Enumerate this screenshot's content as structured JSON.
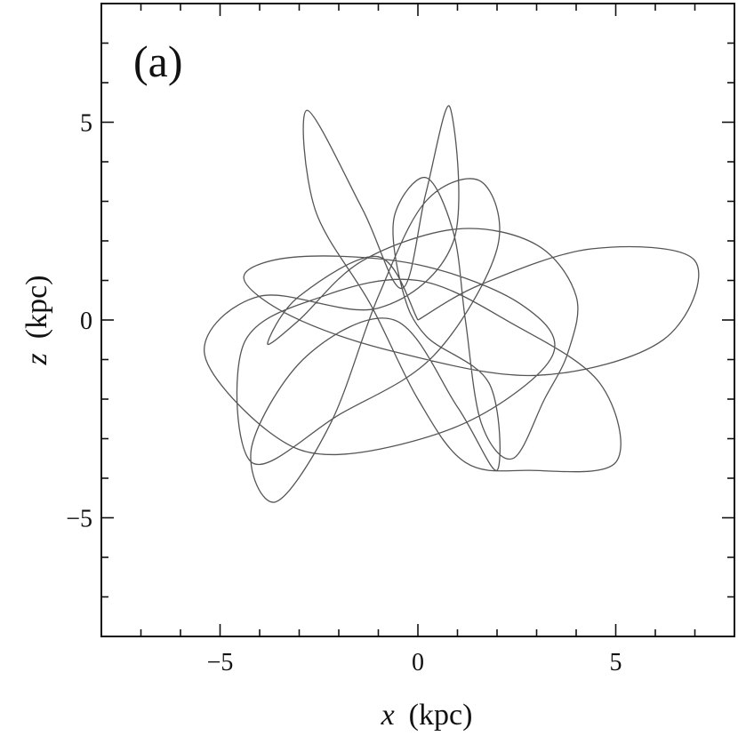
{
  "chart_data": {
    "type": "line",
    "panel_label": "(a)",
    "xlabel_var": "x",
    "xlabel_unit": "(kpc)",
    "ylabel_var": "z",
    "ylabel_unit": "(kpc)",
    "xlim": [
      -8,
      8
    ],
    "ylim": [
      -8,
      8
    ],
    "x_ticks_major": [
      -5,
      0,
      5
    ],
    "y_ticks_major": [
      -5,
      0,
      5
    ],
    "x_tick_labels": [
      "−5",
      "0",
      "5"
    ],
    "y_tick_labels": [
      "−5",
      "0",
      "5"
    ],
    "grid": false,
    "line_color": "#555555",
    "series": [
      {
        "x": [
          0.0,
          1.6,
          4.4,
          7.0,
          6.2,
          3.0,
          -0.6,
          -3.2,
          -4.4,
          -3.0,
          0.0,
          2.6,
          3.4,
          1.2,
          -2.0,
          -3.8,
          -5.4,
          -4.0,
          -1.0,
          0.9,
          0.8,
          0.2,
          -0.4,
          -1.4,
          -2.8,
          -2.6,
          -1.2,
          0.0,
          1.2,
          2.8,
          5.0,
          4.6,
          2.4,
          0.0,
          -2.4,
          -4.4,
          -4.2,
          -2.0,
          0.4,
          2.0,
          1.6,
          0.2,
          -1.0,
          -2.2,
          -3.6,
          -4.2,
          -2.8,
          -0.6,
          1.0,
          2.0,
          1.8,
          0.2,
          -0.4,
          -0.6,
          0.2,
          0.9,
          1.2,
          1.6,
          2.4,
          3.2,
          3.8,
          4.0,
          3.0,
          1.0,
          -1.4,
          -3.0,
          -3.8,
          -3.0,
          -1.0,
          0.0
        ],
        "y": [
          0.0,
          0.9,
          1.8,
          1.5,
          -0.5,
          -1.4,
          -0.8,
          0.1,
          1.1,
          1.6,
          1.4,
          0.4,
          -0.9,
          -2.6,
          -3.4,
          -2.8,
          -0.8,
          0.6,
          0.3,
          2.0,
          5.4,
          3.2,
          0.8,
          2.8,
          5.3,
          2.8,
          0.4,
          -2.0,
          -3.6,
          -3.8,
          -3.6,
          -1.6,
          -0.1,
          1.0,
          0.6,
          -0.6,
          -3.6,
          -2.4,
          -0.9,
          1.8,
          3.5,
          3.0,
          0.6,
          -2.6,
          -4.6,
          -3.2,
          -0.9,
          0.0,
          -2.2,
          -3.8,
          -1.6,
          -0.4,
          0.8,
          2.6,
          3.6,
          2.2,
          0.0,
          -2.6,
          -3.5,
          -2.0,
          -0.8,
          0.6,
          1.9,
          2.3,
          1.5,
          0.0,
          -0.6,
          0.6,
          1.6,
          0.0
        ]
      }
    ]
  }
}
